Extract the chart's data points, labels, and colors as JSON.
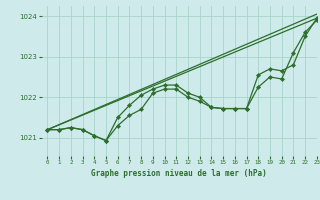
{
  "title": "Graphe pression niveau de la mer (hPa)",
  "bg_color": "#ceeaea",
  "grid_color": "#a8d4cc",
  "line_color": "#2d6e2d",
  "xlim": [
    -0.5,
    23
  ],
  "ylim": [
    1020.55,
    1024.25
  ],
  "yticks": [
    1021,
    1022,
    1023,
    1024
  ],
  "xticks": [
    0,
    1,
    2,
    3,
    4,
    5,
    6,
    7,
    8,
    9,
    10,
    11,
    12,
    13,
    14,
    15,
    16,
    17,
    18,
    19,
    20,
    21,
    22,
    23
  ],
  "hours": [
    0,
    1,
    2,
    3,
    4,
    5,
    6,
    7,
    8,
    9,
    10,
    11,
    12,
    13,
    14,
    15,
    16,
    17,
    18,
    19,
    20,
    21,
    22,
    23
  ],
  "line_detailed1": [
    1021.2,
    1021.2,
    1021.25,
    1021.2,
    1021.05,
    1020.93,
    1021.3,
    1021.55,
    1021.7,
    1022.1,
    1022.2,
    1022.2,
    1022.0,
    1021.9,
    1021.75,
    1021.72,
    1021.72,
    1021.72,
    1022.25,
    1022.5,
    1022.45,
    1023.1,
    1023.6,
    1023.9
  ],
  "line_detailed2": [
    1021.2,
    1021.2,
    1021.25,
    1021.2,
    1021.05,
    1020.93,
    1021.5,
    1021.8,
    1022.05,
    1022.2,
    1022.3,
    1022.3,
    1022.1,
    1022.0,
    1021.75,
    1021.72,
    1021.72,
    1021.72,
    1022.55,
    1022.7,
    1022.65,
    1022.8,
    1023.5,
    1023.95
  ],
  "trend_line1": [
    [
      0,
      1021.2
    ],
    [
      23,
      1024.05
    ]
  ],
  "trend_line2": [
    [
      0,
      1021.2
    ],
    [
      23,
      1023.95
    ]
  ]
}
